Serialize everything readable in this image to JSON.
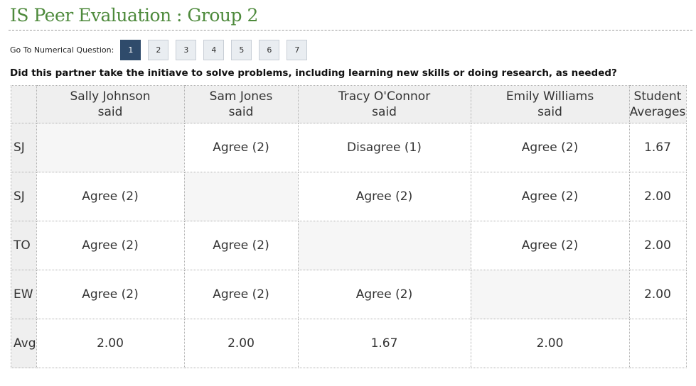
{
  "page": {
    "title": "IS Peer Evaluation : Group 2"
  },
  "nav": {
    "label": "Go To Numerical Question:",
    "questions": [
      "1",
      "2",
      "3",
      "4",
      "5",
      "6",
      "7"
    ],
    "active": "1"
  },
  "question": {
    "text": "Did this partner take the initiave to solve problems, including learning new skills or doing research, as needed?"
  },
  "table": {
    "columns": [
      {
        "name": "Sally Johnson",
        "sub": "said"
      },
      {
        "name": "Sam Jones",
        "sub": "said"
      },
      {
        "name": "Tracy O'Connor",
        "sub": "said"
      },
      {
        "name": "Emily Williams",
        "sub": "said"
      },
      {
        "name": "Student",
        "sub": "Averages"
      }
    ],
    "rows": [
      {
        "label": "SJ",
        "cells": [
          "",
          "Agree (2)",
          "Disagree (1)",
          "Agree (2)",
          "1.67"
        ]
      },
      {
        "label": "SJ",
        "cells": [
          "Agree (2)",
          "",
          "Agree (2)",
          "Agree (2)",
          "2.00"
        ]
      },
      {
        "label": "TO",
        "cells": [
          "Agree (2)",
          "Agree (2)",
          "",
          "Agree (2)",
          "2.00"
        ]
      },
      {
        "label": "EW",
        "cells": [
          "Agree (2)",
          "Agree (2)",
          "Agree (2)",
          "",
          "2.00"
        ]
      },
      {
        "label": "Avg",
        "cells": [
          "2.00",
          "2.00",
          "1.67",
          "2.00",
          ""
        ]
      }
    ]
  },
  "colors": {
    "title": "#4e8a3c",
    "active_button": "#2f4b6b",
    "header_bg": "#efefef"
  }
}
